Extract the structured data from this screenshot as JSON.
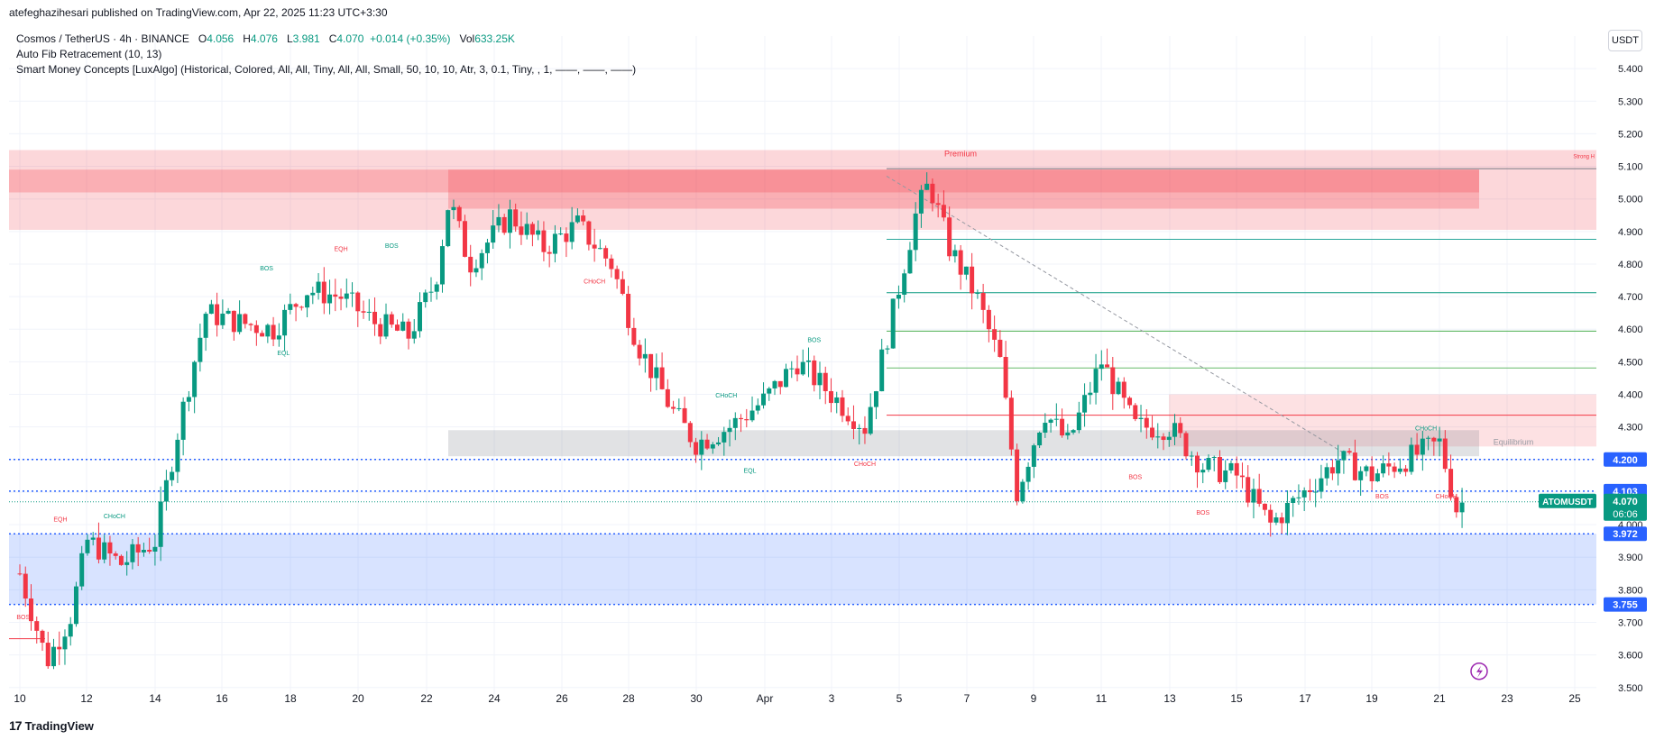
{
  "header": {
    "published_line": "atefeghazihesari published on TradingView.com, Apr 22, 2025 11:23 UTC+3:30"
  },
  "legend": {
    "symbol": "Cosmos / TetherUS · 4h · BINANCE",
    "open_label": "O",
    "open": "4.056",
    "high_label": "H",
    "high": "4.076",
    "low_label": "L",
    "low": "3.981",
    "close_label": "C",
    "close": "4.070",
    "change": "+0.014 (+0.35%)",
    "vol_label": "Vol",
    "vol": "633.25K",
    "indicator1": "Auto Fib Retracement (10, 13)",
    "indicator2": "Smart Money Concepts [LuxAlgo] (Historical, Colored, All, All, Tiny, All, All, Small, 50, 10, 10, Atr, 3, 0.1, Tiny, , 1, ——, ——, ——)"
  },
  "currency": "USDT",
  "footer": {
    "brand": "TradingView",
    "logo": "17"
  },
  "colors": {
    "up": "#089981",
    "down": "#f23645",
    "blue": "#2962ff"
  },
  "chart_data": {
    "type": "candlestick",
    "title": "Cosmos / TetherUS · 4h · BINANCE",
    "ylim": [
      3.48,
      5.5
    ],
    "y_ticks": [
      "5.400",
      "5.300",
      "5.200",
      "5.100",
      "5.000",
      "4.900",
      "4.800",
      "4.700",
      "4.600",
      "4.500",
      "4.400",
      "4.300",
      "4.200",
      "4.100",
      "4.000",
      "3.900",
      "3.800",
      "3.700",
      "3.600",
      "3.500"
    ],
    "x_ticks": [
      "10",
      "12",
      "14",
      "16",
      "18",
      "20",
      "22",
      "24",
      "26",
      "28",
      "30",
      "Apr",
      "3",
      "5",
      "7",
      "9",
      "11",
      "13",
      "15",
      "17",
      "19",
      "21",
      "23",
      "25"
    ],
    "price_labels": [
      {
        "text": "4.200",
        "value": 4.2,
        "color": "#2962ff"
      },
      {
        "text": "4.103",
        "value": 4.103,
        "color": "#2962ff"
      },
      {
        "text": "3.972",
        "value": 3.972,
        "color": "#2962ff"
      },
      {
        "text": "3.755",
        "value": 3.755,
        "color": "#2962ff"
      }
    ],
    "last_price": {
      "symbol": "ATOMUSDT",
      "price": "4.070",
      "countdown": "06:06",
      "value": 4.07
    },
    "zone_labels": {
      "premium": "Premium",
      "equilibrium": "Equilibrium",
      "strong_high": "Strong H"
    },
    "structure_labels": [
      {
        "text": "BOS",
        "value": 4.78,
        "day": 17.3,
        "color": "#089981"
      },
      {
        "text": "EQH",
        "value": 4.84,
        "day": 19.5,
        "color": "#f23645"
      },
      {
        "text": "BOS",
        "value": 4.85,
        "day": 21.0,
        "color": "#089981"
      },
      {
        "text": "EQL",
        "value": 4.52,
        "day": 17.8,
        "color": "#089981"
      },
      {
        "text": "CHoCH",
        "value": 4.74,
        "day": 27.0,
        "color": "#f23645"
      },
      {
        "text": "BOS",
        "value": 4.56,
        "day": 33.5,
        "color": "#089981"
      },
      {
        "text": "CHoCH",
        "value": 4.39,
        "day": 30.9,
        "color": "#089981"
      },
      {
        "text": "EQL",
        "value": 4.16,
        "day": 31.6,
        "color": "#089981"
      },
      {
        "text": "CHoCH",
        "value": 4.18,
        "day": 35.0,
        "color": "#f23645"
      },
      {
        "text": "BOS",
        "value": 4.14,
        "day": 43.0,
        "color": "#f23645"
      },
      {
        "text": "BOS",
        "value": 4.03,
        "day": 45.0,
        "color": "#f23645"
      },
      {
        "text": "EQH",
        "value": 4.01,
        "day": 11.2,
        "color": "#f23645"
      },
      {
        "text": "CHoCH",
        "value": 4.02,
        "day": 12.8,
        "color": "#089981"
      },
      {
        "text": "BOS",
        "value": 3.71,
        "day": 10.1,
        "color": "#f23645"
      },
      {
        "text": "CHoCH",
        "value": 4.29,
        "day": 51.6,
        "color": "#089981"
      },
      {
        "text": "BOS",
        "value": 4.08,
        "day": 50.3,
        "color": "#f23645"
      },
      {
        "text": "CHoCH",
        "value": 4.08,
        "day": 52.2,
        "color": "#f23645"
      }
    ],
    "fib_levels": [
      4.876,
      4.712,
      4.594,
      4.481,
      4.336,
      4.103,
      4.2
    ],
    "zones": {
      "premium": [
        4.905,
        5.15
      ],
      "equilibrium": [
        4.23,
        4.28
      ],
      "discount": [
        3.755,
        3.972
      ]
    },
    "candles_seed": 7
  }
}
